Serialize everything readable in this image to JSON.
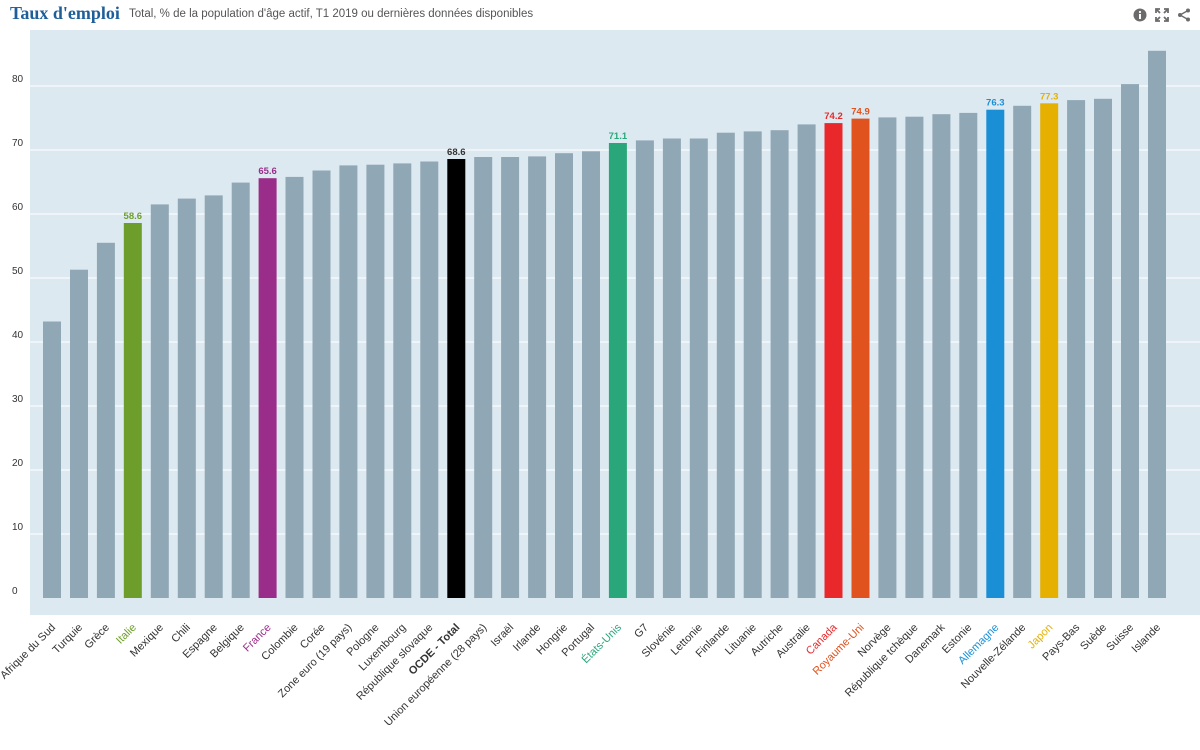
{
  "header": {
    "title": "Taux d'emploi",
    "subtitle": "Total, % de la population d'âge actif, T1 2019 ou dernières données disponibles"
  },
  "toolbar": {
    "icons": [
      "info-icon",
      "expand-icon",
      "share-icon"
    ]
  },
  "colors": {
    "plot_background": "#dde9f0",
    "default_bar": "#90a7b5",
    "italie": "#6d9e2b",
    "france": "#9b2d8a",
    "ocde": "#000000",
    "etats_unis": "#2aa77a",
    "canada": "#e8282b",
    "royaume_uni": "#e0521e",
    "allemagne": "#1a8fd6",
    "japon": "#e5b000"
  },
  "chart_data": {
    "type": "bar",
    "ylim": [
      0,
      90
    ],
    "yticks": [
      0,
      10,
      20,
      30,
      40,
      50,
      60,
      70,
      80
    ],
    "grid": true,
    "categories": [
      "Afrique du Sud",
      "Turquie",
      "Grèce",
      "Italie",
      "Mexique",
      "Chili",
      "Espagne",
      "Belgique",
      "France",
      "Colombie",
      "Corée",
      "Zone euro (19 pays)",
      "Pologne",
      "Luxembourg",
      "République slovaque",
      "OCDE - Total",
      "Union européenne (28 pays)",
      "Israël",
      "Irlande",
      "Hongrie",
      "Portugal",
      "États-Unis",
      "G7",
      "Slovénie",
      "Lettonie",
      "Finlande",
      "Lituanie",
      "Autriche",
      "Australie",
      "Canada",
      "Royaume-Uni",
      "Norvège",
      "République tchèque",
      "Danemark",
      "Estonie",
      "Allemagne",
      "Nouvelle-Zélande",
      "Japon",
      "Pays-Bas",
      "Suède",
      "Suisse",
      "Islande"
    ],
    "values": [
      43.2,
      51.3,
      55.5,
      58.6,
      61.5,
      62.4,
      62.9,
      64.9,
      65.6,
      65.8,
      66.8,
      67.6,
      67.7,
      67.9,
      68.2,
      68.6,
      68.9,
      68.9,
      69.0,
      69.5,
      69.8,
      71.1,
      71.5,
      71.8,
      71.8,
      72.7,
      72.9,
      73.1,
      74.0,
      74.2,
      74.9,
      75.1,
      75.2,
      75.6,
      75.8,
      76.3,
      76.9,
      77.3,
      77.8,
      78.0,
      80.3,
      85.5
    ],
    "highlights": [
      {
        "category": "Italie",
        "color": "#6d9e2b",
        "label": "58.6"
      },
      {
        "category": "France",
        "color": "#9b2d8a",
        "label": "65.6"
      },
      {
        "category": "OCDE - Total",
        "color": "#000000",
        "label": "68.6",
        "label_color": "#333333"
      },
      {
        "category": "États-Unis",
        "color": "#2aa77a",
        "label": "71.1"
      },
      {
        "category": "Canada",
        "color": "#e8282b",
        "label": "74.2"
      },
      {
        "category": "Royaume-Uni",
        "color": "#e0521e",
        "label": "74.9"
      },
      {
        "category": "Allemagne",
        "color": "#1a8fd6",
        "label": "76.3"
      },
      {
        "category": "Japon",
        "color": "#e5b000",
        "label": "77.3"
      }
    ]
  }
}
